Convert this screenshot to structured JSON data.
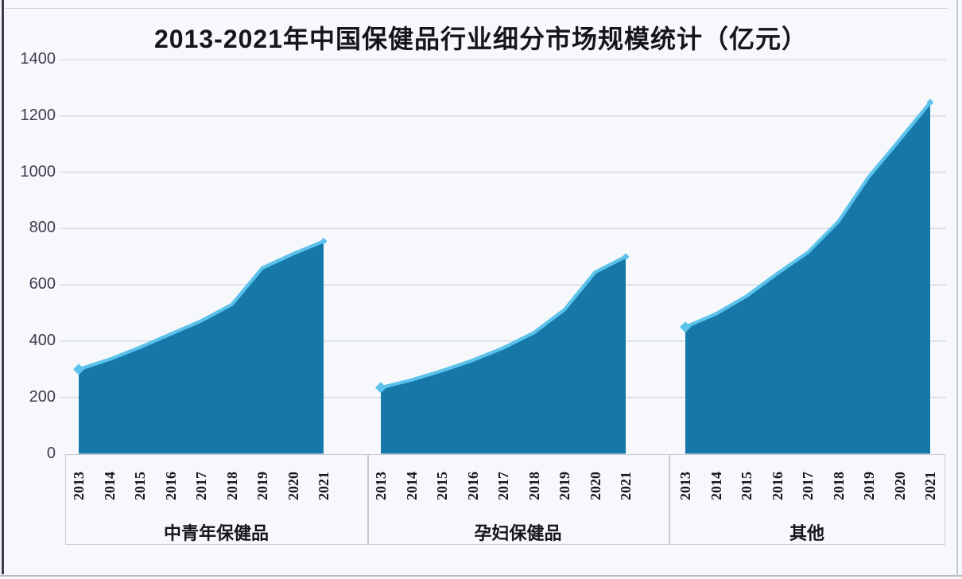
{
  "title": "2013-2021年中国保健品行业细分市场规模统计（亿元）",
  "chart_data": {
    "type": "area",
    "title": "2013-2021年中国保健品行业细分市场规模统计（亿元）",
    "xlabel": "",
    "ylabel": "",
    "unit": "亿元",
    "ylim": [
      0,
      1400
    ],
    "y_ticks": [
      0,
      200,
      400,
      600,
      800,
      1000,
      1200,
      1400
    ],
    "grid": true,
    "legend_position": "none",
    "categories": [
      "2013",
      "2014",
      "2015",
      "2016",
      "2017",
      "2018",
      "2019",
      "2020",
      "2021"
    ],
    "series": [
      {
        "name": "中青年保健品",
        "values": [
          300,
          335,
          378,
          425,
          472,
          530,
          660,
          710,
          755
        ]
      },
      {
        "name": "孕妇保健品",
        "values": [
          235,
          262,
          295,
          332,
          376,
          430,
          512,
          645,
          700
        ]
      },
      {
        "name": "其他",
        "values": [
          450,
          497,
          560,
          640,
          715,
          825,
          985,
          1115,
          1248
        ]
      }
    ],
    "colors": {
      "area": "#1678A8",
      "line": "#5BC3EB",
      "grid": "#D9DCE3",
      "axis_text": "#3C3C4E",
      "label_text": "#15151E",
      "background": "#F7F8FB",
      "box_border": "#C9CCD5",
      "frame_dark": "#3D3D4F"
    }
  }
}
